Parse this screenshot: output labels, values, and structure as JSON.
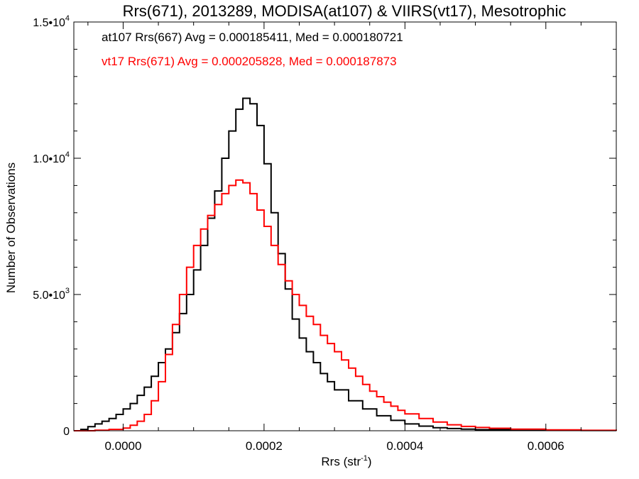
{
  "chart_data": {
    "type": "line",
    "title": "Rrs(671), 2013289, MODISA(at107) & VIIRS(vt17), Mesotrophic",
    "xlabel": "Rrs (str",
    "xlabel_sup": "-1",
    "xlabel_end": ")",
    "ylabel": "Number of Observations",
    "xlim": [
      -7e-05,
      0.0007
    ],
    "ylim": [
      0,
      15000
    ],
    "x_ticks": [
      0.0,
      0.0002,
      0.0004,
      0.0006
    ],
    "x_tick_labels": [
      "0.0000",
      "0.0002",
      "0.0004",
      "0.0006"
    ],
    "y_ticks": [
      0,
      5000,
      10000,
      15000
    ],
    "y_tick_labels": [
      {
        "base": "0",
        "exp": ""
      },
      {
        "base": "5.0•10",
        "exp": "3"
      },
      {
        "base": "1.0•10",
        "exp": "4"
      },
      {
        "base": "1.5•10",
        "exp": "4"
      }
    ],
    "grid": false,
    "legend_position": "top-left",
    "series": [
      {
        "name": "at107 Rrs(667) Avg = 0.000185411, Med = 0.000180721",
        "color": "#000000",
        "x": [
          -7e-05,
          -6e-05,
          -5e-05,
          -4e-05,
          -3e-05,
          -2e-05,
          -1e-05,
          0.0,
          1e-05,
          2e-05,
          3e-05,
          4e-05,
          5e-05,
          6e-05,
          7e-05,
          8e-05,
          9e-05,
          0.0001,
          0.00011,
          0.00012,
          0.00013,
          0.00014,
          0.00015,
          0.00016,
          0.00017,
          0.00018,
          0.00019,
          0.0002,
          0.00021,
          0.00022,
          0.00023,
          0.00024,
          0.00025,
          0.00026,
          0.00027,
          0.00028,
          0.00029,
          0.0003,
          0.00032,
          0.00034,
          0.00036,
          0.00038,
          0.0004,
          0.00042,
          0.00044,
          0.00046,
          0.00048,
          0.0005,
          0.00055,
          0.0006,
          0.00065,
          0.0007
        ],
        "y": [
          0,
          50,
          150,
          250,
          350,
          450,
          600,
          800,
          1000,
          1300,
          1600,
          2000,
          2500,
          3000,
          3600,
          4300,
          5000,
          5900,
          6800,
          7800,
          8800,
          10000,
          11000,
          11800,
          12200,
          12000,
          11200,
          9800,
          8000,
          6500,
          5200,
          4100,
          3400,
          2900,
          2500,
          2100,
          1800,
          1500,
          1100,
          800,
          550,
          380,
          250,
          170,
          110,
          80,
          60,
          40,
          25,
          15,
          10,
          0
        ]
      },
      {
        "name": "vt17 Rrs(671) Avg = 0.000205828, Med = 0.000187873",
        "color": "#ff0000",
        "x": [
          -7e-05,
          -6e-05,
          -4e-05,
          -2e-05,
          0.0,
          1e-05,
          2e-05,
          3e-05,
          4e-05,
          5e-05,
          6e-05,
          7e-05,
          8e-05,
          9e-05,
          0.0001,
          0.00011,
          0.00012,
          0.00013,
          0.00014,
          0.00015,
          0.00016,
          0.00017,
          0.00018,
          0.00019,
          0.0002,
          0.00021,
          0.00022,
          0.00023,
          0.00024,
          0.00025,
          0.00026,
          0.00027,
          0.00028,
          0.00029,
          0.0003,
          0.00031,
          0.00032,
          0.00033,
          0.00034,
          0.00035,
          0.00036,
          0.00037,
          0.00038,
          0.00039,
          0.0004,
          0.00042,
          0.00044,
          0.00046,
          0.00048,
          0.0005,
          0.00052,
          0.00055,
          0.0006,
          0.00065,
          0.0007
        ],
        "y": [
          0,
          0,
          20,
          50,
          100,
          200,
          350,
          600,
          1100,
          1800,
          2800,
          3900,
          5000,
          6000,
          6800,
          7400,
          7900,
          8300,
          8700,
          9000,
          9200,
          9100,
          8700,
          8100,
          7500,
          6800,
          6100,
          5500,
          5000,
          4600,
          4200,
          3900,
          3500,
          3200,
          2900,
          2600,
          2300,
          2000,
          1700,
          1450,
          1250,
          1050,
          900,
          750,
          620,
          450,
          320,
          220,
          160,
          120,
          90,
          60,
          30,
          15,
          0
        ]
      }
    ]
  }
}
